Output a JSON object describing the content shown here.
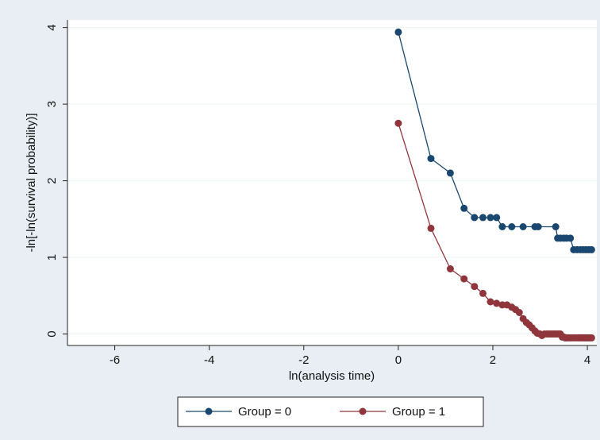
{
  "chart_data": {
    "type": "line",
    "title": "",
    "xlabel": "ln(analysis time)",
    "ylabel": "-ln[-ln(survival probability)]",
    "xlim": [
      -7,
      4.2
    ],
    "ylim": [
      -0.15,
      4.1
    ],
    "x_ticks": [
      "-6",
      "-4",
      "-2",
      "0",
      "2",
      "4"
    ],
    "y_ticks": [
      "0",
      "1",
      "2",
      "3",
      "4"
    ],
    "grid": "horizontal",
    "legend_position": "bottom",
    "series": [
      {
        "name": "Group = 0",
        "color": "#1a476f",
        "points": [
          [
            0.0,
            3.94
          ],
          [
            0.69,
            2.29
          ],
          [
            1.1,
            2.1
          ],
          [
            1.39,
            1.64
          ],
          [
            1.61,
            1.52
          ],
          [
            1.79,
            1.52
          ],
          [
            1.95,
            1.52
          ],
          [
            2.08,
            1.52
          ],
          [
            2.2,
            1.4
          ],
          [
            2.4,
            1.4
          ],
          [
            2.64,
            1.4
          ],
          [
            2.89,
            1.4
          ],
          [
            2.96,
            1.4
          ],
          [
            3.33,
            1.4
          ],
          [
            3.37,
            1.25
          ],
          [
            3.43,
            1.25
          ],
          [
            3.5,
            1.25
          ],
          [
            3.56,
            1.25
          ],
          [
            3.64,
            1.25
          ],
          [
            3.71,
            1.1
          ],
          [
            3.78,
            1.1
          ],
          [
            3.85,
            1.1
          ],
          [
            3.91,
            1.1
          ],
          [
            3.97,
            1.1
          ],
          [
            4.03,
            1.1
          ],
          [
            4.09,
            1.1
          ]
        ]
      },
      {
        "name": "Group = 1",
        "color": "#90353b",
        "points": [
          [
            0.0,
            2.75
          ],
          [
            0.69,
            1.38
          ],
          [
            1.1,
            0.85
          ],
          [
            1.39,
            0.72
          ],
          [
            1.61,
            0.62
          ],
          [
            1.79,
            0.53
          ],
          [
            1.95,
            0.42
          ],
          [
            2.08,
            0.4
          ],
          [
            2.2,
            0.38
          ],
          [
            2.3,
            0.38
          ],
          [
            2.4,
            0.35
          ],
          [
            2.48,
            0.32
          ],
          [
            2.56,
            0.28
          ],
          [
            2.64,
            0.2
          ],
          [
            2.71,
            0.15
          ],
          [
            2.77,
            0.12
          ],
          [
            2.83,
            0.08
          ],
          [
            2.89,
            0.04
          ],
          [
            2.94,
            0.01
          ],
          [
            3.0,
            0.0
          ],
          [
            3.04,
            -0.02
          ],
          [
            3.09,
            0.0
          ],
          [
            3.14,
            0.0
          ],
          [
            3.18,
            0.0
          ],
          [
            3.22,
            0.0
          ],
          [
            3.26,
            0.0
          ],
          [
            3.3,
            0.0
          ],
          [
            3.33,
            0.0
          ],
          [
            3.37,
            0.0
          ],
          [
            3.4,
            0.0
          ],
          [
            3.43,
            0.0
          ],
          [
            3.47,
            -0.04
          ],
          [
            3.5,
            -0.04
          ],
          [
            3.53,
            -0.05
          ],
          [
            3.56,
            -0.05
          ],
          [
            3.61,
            -0.05
          ],
          [
            3.66,
            -0.05
          ],
          [
            3.71,
            -0.05
          ],
          [
            3.76,
            -0.05
          ],
          [
            3.81,
            -0.05
          ],
          [
            3.85,
            -0.05
          ],
          [
            3.89,
            -0.05
          ],
          [
            3.93,
            -0.05
          ],
          [
            3.97,
            -0.05
          ],
          [
            4.01,
            -0.05
          ],
          [
            4.05,
            -0.05
          ],
          [
            4.09,
            -0.05
          ]
        ]
      }
    ]
  }
}
